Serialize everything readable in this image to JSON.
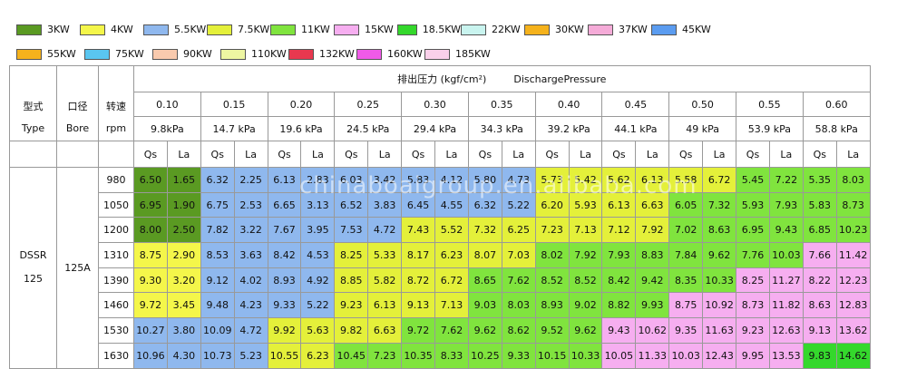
{
  "legend": [
    [
      {
        "label": "3KW",
        "color": "#5a9a22"
      },
      {
        "label": "4KW",
        "color": "#f4f64a"
      },
      {
        "label": "5.5KW",
        "color": "#8fb8ee"
      },
      {
        "label": "7.5KW",
        "color": "#e4f03a"
      },
      {
        "label": "11KW",
        "color": "#80e43e"
      },
      {
        "label": "15KW",
        "color": "#f6aef0"
      },
      {
        "label": "18.5KW",
        "color": "#34d82c"
      },
      {
        "label": "22KW",
        "color": "#c9f4ef"
      },
      {
        "label": "30KW",
        "color": "#f5b21c"
      },
      {
        "label": "37KW",
        "color": "#f5abd8"
      },
      {
        "label": "45KW",
        "color": "#5b9cf0"
      }
    ],
    [
      {
        "label": "55KW",
        "color": "#f5b21c"
      },
      {
        "label": "75KW",
        "color": "#5ac6f0"
      },
      {
        "label": "90KW",
        "color": "#f9caae"
      },
      {
        "label": "110KW",
        "color": "#eef6a2"
      },
      {
        "label": "132KW",
        "color": "#e8384f"
      },
      {
        "label": "160KW",
        "color": "#f05ae8"
      },
      {
        "label": "185KW",
        "color": "#fad0ea"
      }
    ]
  ],
  "table": {
    "head": {
      "type_cn": "型式",
      "type_en": "Type",
      "bore_cn": "口径",
      "bore_en": "Bore",
      "rpm_cn": "转速",
      "rpm_en": "rpm",
      "pressure_cn": "排出压力 (kgf/cm²)",
      "pressure_en": "DischargePressure",
      "qs": "Qs",
      "la": "La"
    },
    "pressures": [
      {
        "kgf": "0.10",
        "kpa": "9.8kPa"
      },
      {
        "kgf": "0.15",
        "kpa": "14.7 kPa"
      },
      {
        "kgf": "0.20",
        "kpa": "19.6 kPa"
      },
      {
        "kgf": "0.25",
        "kpa": "24.5 kPa"
      },
      {
        "kgf": "0.30",
        "kpa": "29.4 kPa"
      },
      {
        "kgf": "0.35",
        "kpa": "34.3 kPa"
      },
      {
        "kgf": "0.40",
        "kpa": "39.2 kPa"
      },
      {
        "kgf": "0.45",
        "kpa": "44.1 kPa"
      },
      {
        "kgf": "0.50",
        "kpa": "49 kPa"
      },
      {
        "kgf": "0.55",
        "kpa": "53.9 kPa"
      },
      {
        "kgf": "0.60",
        "kpa": "58.8 kPa"
      }
    ],
    "model": "DSSR\n125",
    "bore": "125A",
    "rows": [
      {
        "rpm": "980",
        "cells": [
          [
            "6.50",
            "1.65",
            "#5a9a22"
          ],
          [
            "6.32",
            "2.25",
            "#8fb8ee"
          ],
          [
            "6.13",
            "2.83",
            "#8fb8ee"
          ],
          [
            "6.03",
            "3.42",
            "#8fb8ee"
          ],
          [
            "5.83",
            "4.12",
            "#8fb8ee"
          ],
          [
            "5.80",
            "4.73",
            "#8fb8ee"
          ],
          [
            "5.73",
            "5.42",
            "#e4f03a"
          ],
          [
            "5.62",
            "6.13",
            "#e4f03a"
          ],
          [
            "5.58",
            "6.72",
            "#e4f03a"
          ],
          [
            "5.45",
            "7.22",
            "#80e43e"
          ],
          [
            "5.35",
            "8.03",
            "#80e43e"
          ]
        ]
      },
      {
        "rpm": "1050",
        "cells": [
          [
            "6.95",
            "1.90",
            "#5a9a22"
          ],
          [
            "6.75",
            "2.53",
            "#8fb8ee"
          ],
          [
            "6.65",
            "3.13",
            "#8fb8ee"
          ],
          [
            "6.52",
            "3.83",
            "#8fb8ee"
          ],
          [
            "6.45",
            "4.55",
            "#8fb8ee"
          ],
          [
            "6.32",
            "5.22",
            "#8fb8ee"
          ],
          [
            "6.20",
            "5.93",
            "#e4f03a"
          ],
          [
            "6.13",
            "6.63",
            "#e4f03a"
          ],
          [
            "6.05",
            "7.32",
            "#80e43e"
          ],
          [
            "5.93",
            "7.93",
            "#80e43e"
          ],
          [
            "5.83",
            "8.73",
            "#80e43e"
          ]
        ]
      },
      {
        "rpm": "1200",
        "cells": [
          [
            "8.00",
            "2.50",
            "#5a9a22"
          ],
          [
            "7.82",
            "3.22",
            "#8fb8ee"
          ],
          [
            "7.67",
            "3.95",
            "#8fb8ee"
          ],
          [
            "7.53",
            "4.72",
            "#8fb8ee"
          ],
          [
            "7.43",
            "5.52",
            "#e4f03a"
          ],
          [
            "7.32",
            "6.25",
            "#e4f03a"
          ],
          [
            "7.23",
            "7.13",
            "#e4f03a"
          ],
          [
            "7.12",
            "7.92",
            "#e4f03a"
          ],
          [
            "7.02",
            "8.63",
            "#80e43e"
          ],
          [
            "6.95",
            "9.43",
            "#80e43e"
          ],
          [
            "6.85",
            "10.23",
            "#80e43e"
          ]
        ]
      },
      {
        "rpm": "1310",
        "cells": [
          [
            "8.75",
            "2.90",
            "#f4f64a"
          ],
          [
            "8.53",
            "3.63",
            "#8fb8ee"
          ],
          [
            "8.42",
            "4.53",
            "#8fb8ee"
          ],
          [
            "8.25",
            "5.33",
            "#e4f03a"
          ],
          [
            "8.17",
            "6.23",
            "#e4f03a"
          ],
          [
            "8.07",
            "7.03",
            "#e4f03a"
          ],
          [
            "8.02",
            "7.92",
            "#80e43e"
          ],
          [
            "7.93",
            "8.83",
            "#80e43e"
          ],
          [
            "7.84",
            "9.62",
            "#80e43e"
          ],
          [
            "7.76",
            "10.03",
            "#80e43e"
          ],
          [
            "7.66",
            "11.42",
            "#f6aef0"
          ]
        ]
      },
      {
        "rpm": "1390",
        "cells": [
          [
            "9.30",
            "3.20",
            "#f4f64a"
          ],
          [
            "9.12",
            "4.02",
            "#8fb8ee"
          ],
          [
            "8.93",
            "4.92",
            "#8fb8ee"
          ],
          [
            "8.85",
            "5.82",
            "#e4f03a"
          ],
          [
            "8.72",
            "6.72",
            "#e4f03a"
          ],
          [
            "8.65",
            "7.62",
            "#80e43e"
          ],
          [
            "8.52",
            "8.52",
            "#80e43e"
          ],
          [
            "8.42",
            "9.42",
            "#80e43e"
          ],
          [
            "8.35",
            "10.33",
            "#80e43e"
          ],
          [
            "8.25",
            "11.27",
            "#f6aef0"
          ],
          [
            "8.22",
            "12.23",
            "#f6aef0"
          ]
        ]
      },
      {
        "rpm": "1460",
        "cells": [
          [
            "9.72",
            "3.45",
            "#f4f64a"
          ],
          [
            "9.48",
            "4.23",
            "#8fb8ee"
          ],
          [
            "9.33",
            "5.22",
            "#8fb8ee"
          ],
          [
            "9.23",
            "6.13",
            "#e4f03a"
          ],
          [
            "9.13",
            "7.13",
            "#e4f03a"
          ],
          [
            "9.03",
            "8.03",
            "#80e43e"
          ],
          [
            "8.93",
            "9.02",
            "#80e43e"
          ],
          [
            "8.82",
            "9.93",
            "#80e43e"
          ],
          [
            "8.75",
            "10.92",
            "#f6aef0"
          ],
          [
            "8.73",
            "11.82",
            "#f6aef0"
          ],
          [
            "8.63",
            "12.83",
            "#f6aef0"
          ]
        ]
      },
      {
        "rpm": "1530",
        "cells": [
          [
            "10.27",
            "3.80",
            "#8fb8ee"
          ],
          [
            "10.09",
            "4.72",
            "#8fb8ee"
          ],
          [
            "9.92",
            "5.63",
            "#e4f03a"
          ],
          [
            "9.82",
            "6.63",
            "#e4f03a"
          ],
          [
            "9.72",
            "7.62",
            "#80e43e"
          ],
          [
            "9.62",
            "8.62",
            "#80e43e"
          ],
          [
            "9.52",
            "9.62",
            "#80e43e"
          ],
          [
            "9.43",
            "10.62",
            "#f6aef0"
          ],
          [
            "9.35",
            "11.63",
            "#f6aef0"
          ],
          [
            "9.23",
            "12.63",
            "#f6aef0"
          ],
          [
            "9.13",
            "13.62",
            "#f6aef0"
          ]
        ]
      },
      {
        "rpm": "1630",
        "cells": [
          [
            "10.96",
            "4.30",
            "#8fb8ee"
          ],
          [
            "10.73",
            "5.23",
            "#8fb8ee"
          ],
          [
            "10.55",
            "6.23",
            "#e4f03a"
          ],
          [
            "10.45",
            "7.23",
            "#80e43e"
          ],
          [
            "10.35",
            "8.33",
            "#80e43e"
          ],
          [
            "10.25",
            "9.33",
            "#80e43e"
          ],
          [
            "10.15",
            "10.33",
            "#80e43e"
          ],
          [
            "10.05",
            "11.33",
            "#f6aef0"
          ],
          [
            "10.03",
            "12.43",
            "#f6aef0"
          ],
          [
            "9.95",
            "13.53",
            "#f6aef0"
          ],
          [
            "9.83",
            "14.62",
            "#34d82c"
          ]
        ]
      }
    ]
  },
  "watermark": "chinaboaigroup.en.alibaba.com"
}
